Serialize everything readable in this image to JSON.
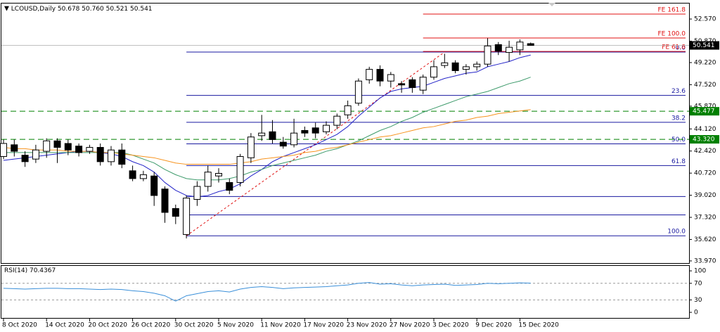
{
  "chart_data": [
    {
      "type": "candlestick",
      "title": "LCOUSD,Daily",
      "ohlc_labels": [
        "50.678",
        "50.760",
        "50.521",
        "50.541"
      ],
      "categories": [
        "8 Oct 2020",
        null,
        null,
        null,
        "14 Oct 2020",
        null,
        null,
        null,
        "20 Oct 2020",
        null,
        null,
        null,
        "26 Oct 2020",
        null,
        null,
        null,
        "30 Oct 2020",
        null,
        null,
        null,
        "5 Nov 2020",
        null,
        null,
        null,
        "11 Nov 2020",
        null,
        null,
        null,
        "17 Nov 2020",
        null,
        null,
        null,
        "23 Nov 2020",
        null,
        null,
        null,
        "27 Nov 2020",
        null,
        null,
        null,
        "3 Dec 2020",
        null,
        null,
        null,
        "9 Dec 2020",
        null,
        null,
        null,
        "15 Dec 2020",
        null
      ],
      "open": [
        42.0,
        42.9,
        42.1,
        41.8,
        42.4,
        43.2,
        43.0,
        42.8,
        42.4,
        42.7,
        41.6,
        42.5,
        40.9,
        40.3,
        40.5,
        39.5,
        38.0,
        36.0,
        38.7,
        39.7,
        40.5,
        40.0,
        40.0,
        41.9,
        43.6,
        43.9,
        43.1,
        42.9,
        44.0,
        44.2,
        43.9,
        44.4,
        45.2,
        46.1,
        47.9,
        48.7,
        47.8,
        47.6,
        47.9,
        47.1,
        48.1,
        49.0,
        49.2,
        48.7,
        48.9,
        49.1,
        50.6,
        50.0,
        50.2,
        50.678
      ],
      "high": [
        43.3,
        43.3,
        42.4,
        42.9,
        43.4,
        43.4,
        43.3,
        43.0,
        42.9,
        43.0,
        42.8,
        43.0,
        41.3,
        40.9,
        40.8,
        39.7,
        38.3,
        39.0,
        40.1,
        41.3,
        41.1,
        40.3,
        42.2,
        43.8,
        45.2,
        44.8,
        43.5,
        44.9,
        44.3,
        44.6,
        44.7,
        45.3,
        46.3,
        48.0,
        48.9,
        49.0,
        48.5,
        47.8,
        48.1,
        48.3,
        49.4,
        49.9,
        49.4,
        49.1,
        49.3,
        51.1,
        50.8,
        50.9,
        51.0,
        50.76
      ],
      "low": [
        41.8,
        42.0,
        41.2,
        41.5,
        41.9,
        41.5,
        42.1,
        42.0,
        42.2,
        41.3,
        41.3,
        41.1,
        40.1,
        40.1,
        38.2,
        36.9,
        36.8,
        35.7,
        38.2,
        39.3,
        40.0,
        39.1,
        39.7,
        41.5,
        43.2,
        43.0,
        42.6,
        42.7,
        43.5,
        43.4,
        43.7,
        44.1,
        44.9,
        45.9,
        47.6,
        47.4,
        47.3,
        46.9,
        46.9,
        46.8,
        47.9,
        48.8,
        48.4,
        48.3,
        48.6,
        48.9,
        49.8,
        49.3,
        49.8,
        50.521
      ],
      "close": [
        43.0,
        42.4,
        41.6,
        42.5,
        43.2,
        42.7,
        42.5,
        42.3,
        42.7,
        41.6,
        42.5,
        41.4,
        40.3,
        40.6,
        39.0,
        37.7,
        37.4,
        38.8,
        39.7,
        40.8,
        40.7,
        39.4,
        42.0,
        43.5,
        43.8,
        43.3,
        42.8,
        43.8,
        43.8,
        43.8,
        44.4,
        45.1,
        45.9,
        47.8,
        48.7,
        47.8,
        48.3,
        47.5,
        47.3,
        48.1,
        48.9,
        49.2,
        48.6,
        48.9,
        49.1,
        50.5,
        50.1,
        50.4,
        50.8,
        50.541
      ],
      "series": [
        {
          "color": "#2323c8",
          "values": [
            41.7,
            41.8,
            41.9,
            42.0,
            42.1,
            42.2,
            42.3,
            42.4,
            42.4,
            42.3,
            42.2,
            42.0,
            41.6,
            41.3,
            40.8,
            40.0,
            39.4,
            39.0,
            38.9,
            39.0,
            39.3,
            39.5,
            39.9,
            40.5,
            41.0,
            41.6,
            42.0,
            42.3,
            42.6,
            42.9,
            43.3,
            43.7,
            44.3,
            45.1,
            45.8,
            46.5,
            47.0,
            47.2,
            47.3,
            47.4,
            47.7,
            48.0,
            48.2,
            48.4,
            48.5,
            48.9,
            49.1,
            49.3,
            49.6,
            49.8
          ]
        },
        {
          "color": "#3c9a6a",
          "values": [
            42.3,
            42.3,
            42.3,
            42.3,
            42.3,
            42.3,
            42.3,
            42.3,
            42.3,
            42.3,
            42.3,
            42.3,
            42.1,
            41.8,
            41.5,
            41.0,
            40.6,
            40.3,
            40.2,
            40.2,
            40.2,
            40.3,
            40.5,
            40.8,
            41.0,
            41.3,
            41.5,
            41.7,
            41.9,
            42.1,
            42.4,
            42.6,
            42.9,
            43.2,
            43.6,
            44.0,
            44.3,
            44.7,
            45.0,
            45.4,
            45.7,
            46.0,
            46.3,
            46.6,
            46.8,
            47.0,
            47.3,
            47.6,
            47.8,
            48.1
          ]
        },
        {
          "color": "#f7931e",
          "values": [
            42.7,
            42.6,
            42.6,
            42.5,
            42.5,
            42.5,
            42.4,
            42.4,
            42.4,
            42.3,
            42.3,
            42.2,
            42.1,
            42.0,
            41.9,
            41.7,
            41.5,
            41.4,
            41.4,
            41.4,
            41.4,
            41.4,
            41.5,
            41.6,
            41.8,
            41.9,
            42.0,
            42.1,
            42.3,
            42.4,
            42.6,
            42.7,
            42.9,
            43.1,
            43.3,
            43.5,
            43.6,
            43.8,
            44.0,
            44.2,
            44.3,
            44.5,
            44.7,
            44.8,
            45.0,
            45.1,
            45.3,
            45.4,
            45.5,
            45.6
          ]
        }
      ],
      "ylim": [
        33.75,
        53.6
      ],
      "yticks": [
        {
          "value": 52.57,
          "label": "52.570"
        },
        {
          "value": 50.87,
          "label": "50.870"
        },
        {
          "value": 49.22,
          "label": "49.220"
        },
        {
          "value": 47.52,
          "label": "47.520"
        },
        {
          "value": 45.87,
          "label": "45.870"
        },
        {
          "value": 44.12,
          "label": "44.120"
        },
        {
          "value": 42.42,
          "label": "42.420"
        },
        {
          "value": 40.72,
          "label": "40.720"
        },
        {
          "value": 39.02,
          "label": "39.020"
        },
        {
          "value": 37.32,
          "label": "37.320"
        },
        {
          "value": 35.62,
          "label": "35.620"
        },
        {
          "value": 33.97,
          "label": "33.970"
        }
      ],
      "fib_retracement": {
        "color": "#1a1aa0",
        "levels": [
          {
            "value": 50.03,
            "label": "0.0"
          },
          {
            "value": 46.7,
            "label": "23.6"
          },
          {
            "value": 44.63,
            "label": "38.2"
          },
          {
            "value": 42.97,
            "label": "50.0"
          },
          {
            "value": 41.3,
            "label": "61.8"
          },
          {
            "value": 38.92
          },
          {
            "value": 37.51
          },
          {
            "value": 35.9,
            "label": "100.0"
          }
        ]
      },
      "fib_expansion": {
        "color": "#e01010",
        "levels": [
          {
            "value": 52.95,
            "label": "FE 161.8"
          },
          {
            "value": 51.11,
            "label": "FE 100.0"
          },
          {
            "value": 50.08,
            "label": "FE 61.8"
          }
        ]
      },
      "price_lines": [
        {
          "value": 50.541,
          "color": "#000000"
        },
        {
          "value": 45.477,
          "color": "#008000"
        },
        {
          "value": 43.32,
          "label": "43.320",
          "color": "#008000"
        }
      ]
    },
    {
      "type": "line",
      "title": "RSI(14)",
      "series": [
        {
          "color": "#3a8fd9",
          "values": [
            58,
            57,
            56,
            57,
            58,
            58,
            57,
            57,
            56,
            55,
            56,
            55,
            52,
            50,
            46,
            40,
            27,
            40,
            45,
            50,
            52,
            49,
            56,
            60,
            62,
            60,
            57,
            59,
            60,
            61,
            62,
            64,
            66,
            70,
            72,
            68,
            69,
            66,
            64,
            66,
            67,
            68,
            65,
            66,
            67,
            70,
            69,
            70,
            71,
            70.4367
          ]
        }
      ],
      "ylim": [
        -13.5,
        112
      ],
      "yticks": [
        100,
        70,
        30,
        0
      ],
      "levels": [
        70,
        30
      ]
    }
  ]
}
